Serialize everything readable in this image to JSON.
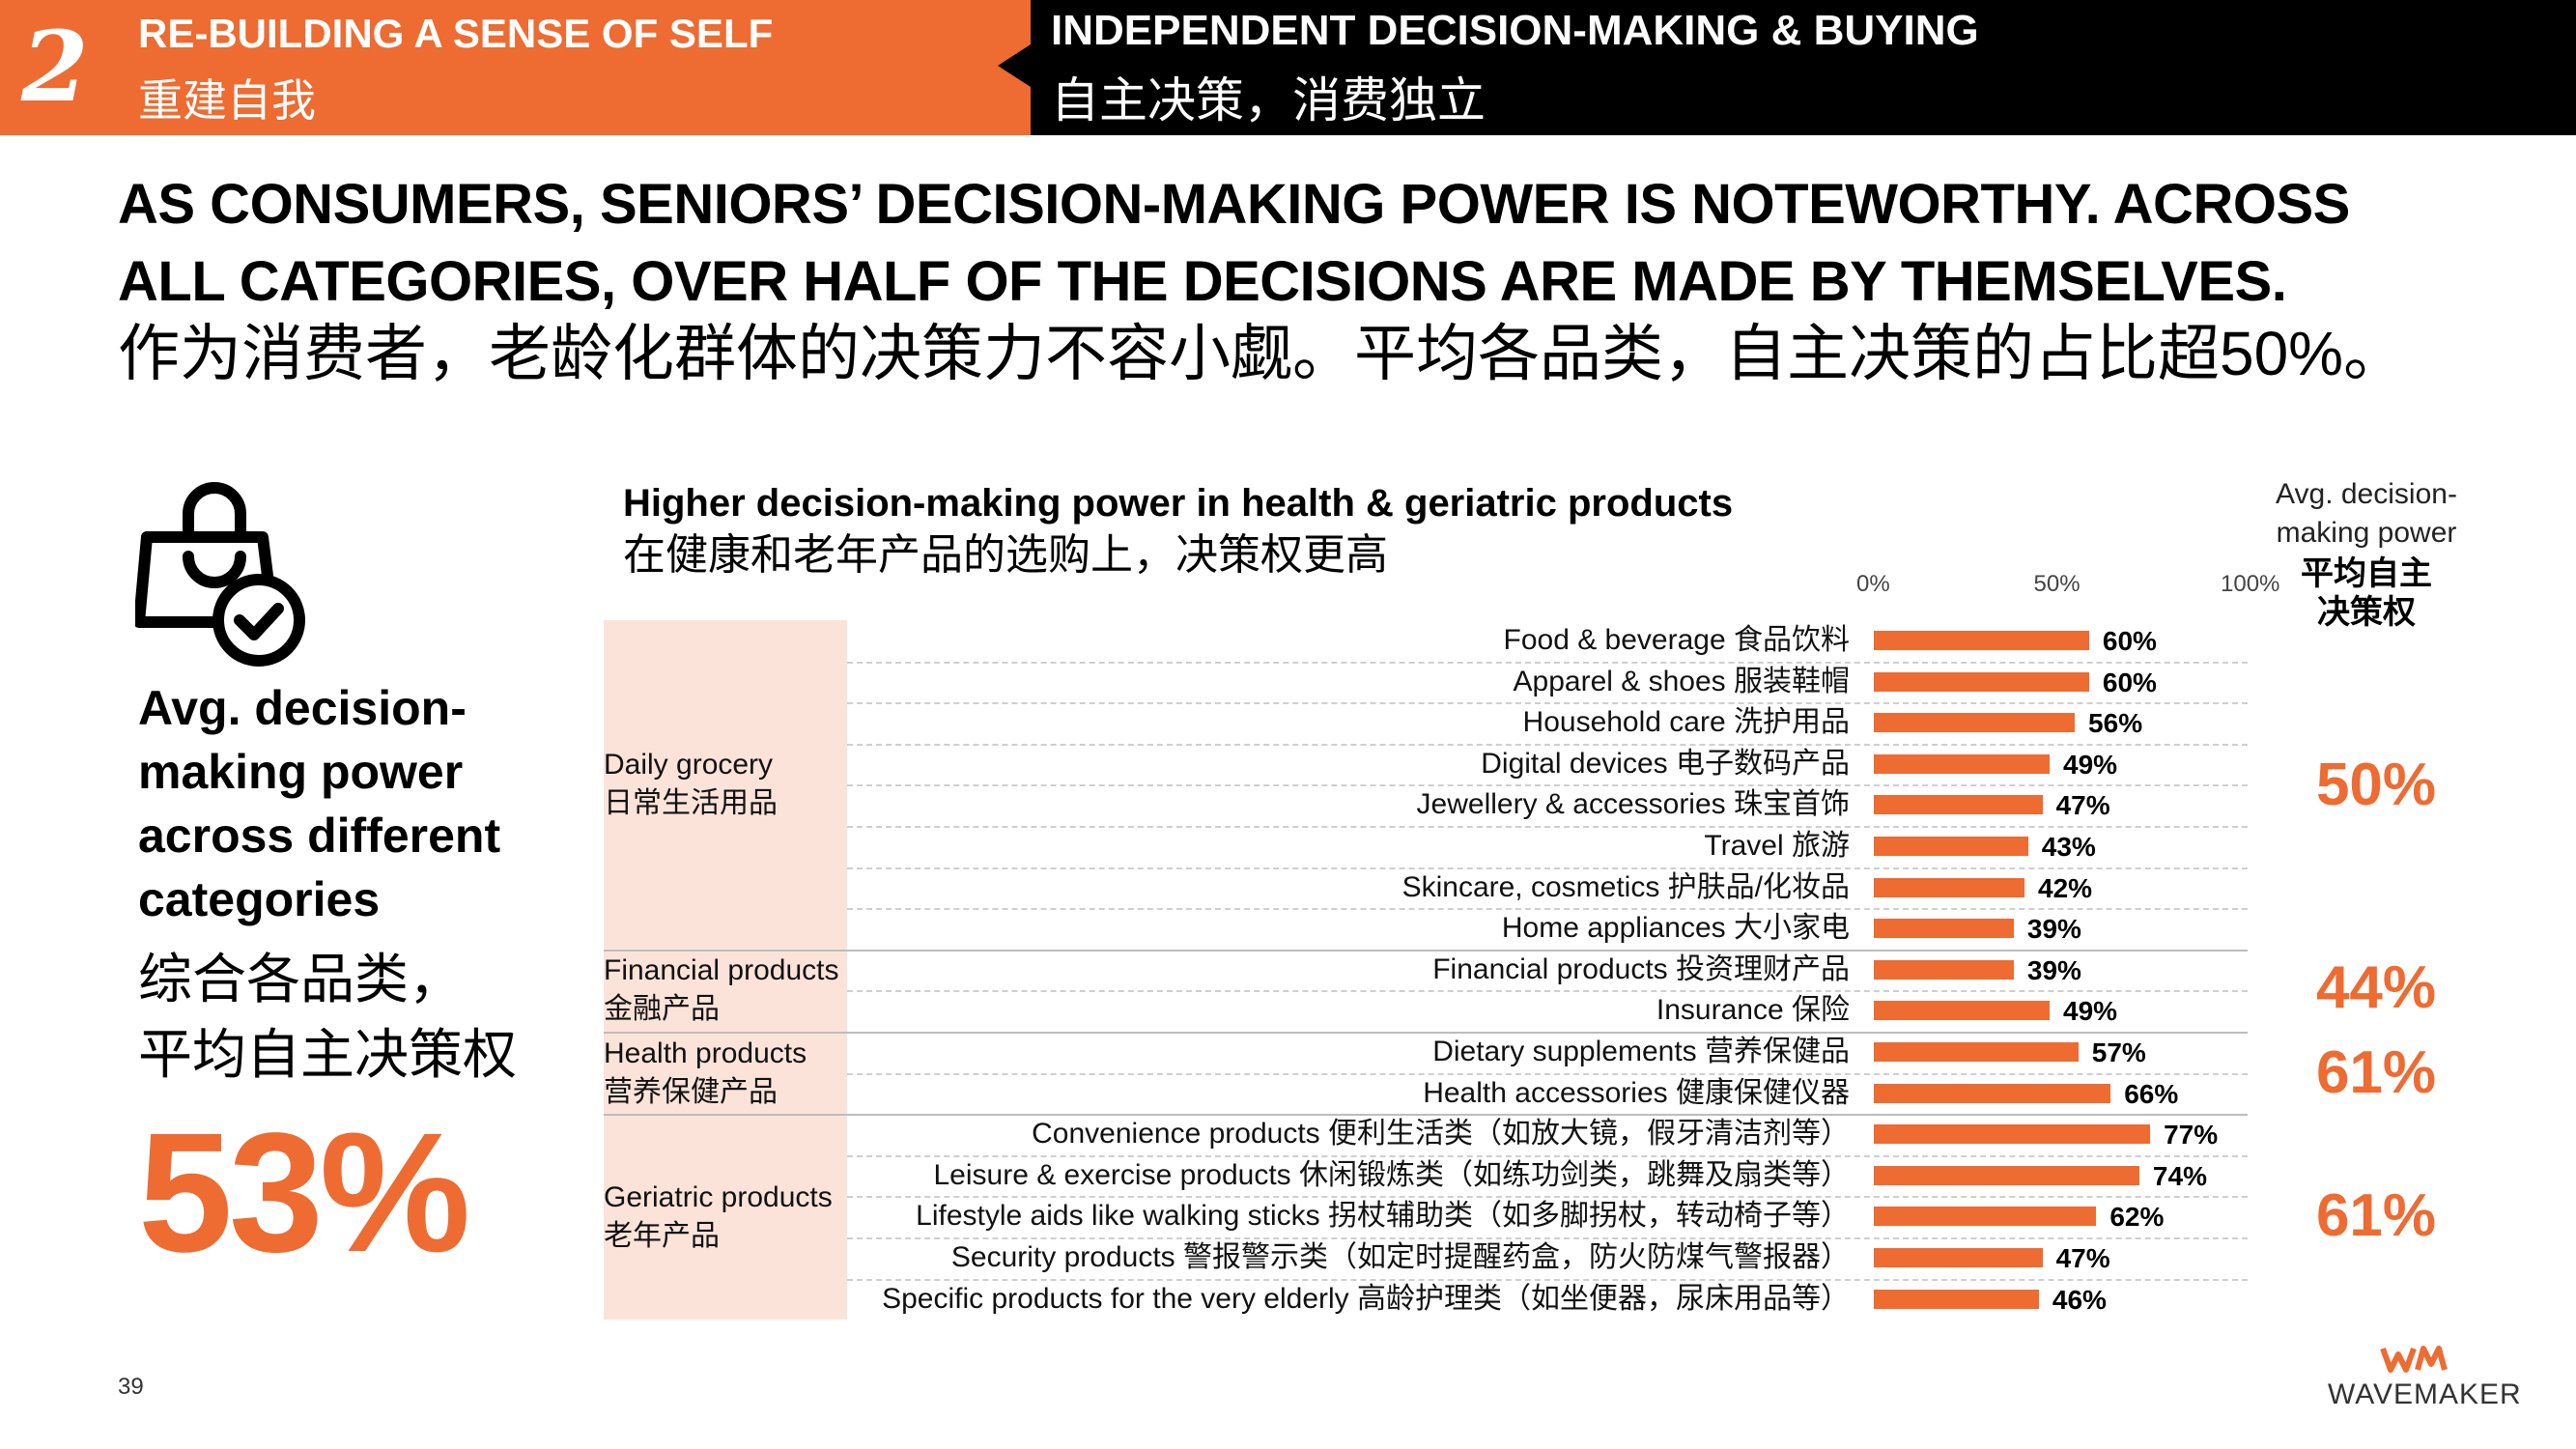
{
  "header": {
    "section_number": "2",
    "left_title_en": "RE-BUILDING A SENSE OF SELF",
    "left_title_zh": "重建自我",
    "right_title_en": "INDEPENDENT DECISION-MAKING & BUYING",
    "right_title_zh": "自主决策，消费独立"
  },
  "headline": {
    "line1_en": "AS CONSUMERS, SENIORS’ DECISION-MAKING POWER IS NOTEWORTHY. ACROSS",
    "line2_en": "ALL CATEGORIES, OVER HALF OF THE DECISIONS ARE MADE BY THEMSELVES.",
    "line_zh": "作为消费者，老龄化群体的决策力不容小觑。平均各品类，自主决策的占比超50%。"
  },
  "left_panel": {
    "icon": "shopping-bag-check-icon",
    "title_en": "Avg. decision-making power across different categories",
    "title_zh_1": "综合各品类，",
    "title_zh_2": "平均自主决策权",
    "value": "53%"
  },
  "avg_column": {
    "header_en_1": "Avg. decision-",
    "header_en_2": "making power",
    "header_zh_1": "平均自主",
    "header_zh_2": "决策权",
    "values": [
      "50%",
      "44%",
      "61%",
      "61%"
    ]
  },
  "colors": {
    "accent": "#EE6B32",
    "group_bg": "#FCE3DA",
    "dark": "#000000"
  },
  "chart_data": {
    "type": "bar",
    "orientation": "horizontal",
    "title": "Higher decision-making power in health & geriatric products",
    "subtitle": "在健康和老年产品的选购上，决策权更高",
    "xlim": [
      0,
      100
    ],
    "ticks": [
      "0%",
      "50%",
      "100%"
    ],
    "value_suffix": "%",
    "groups": [
      {
        "name_en": "Daily grocery",
        "name_zh": "日常生活用品",
        "avg": "50%",
        "items": [
          {
            "label": "Food & beverage 食品饮料",
            "value": 60
          },
          {
            "label": "Apparel & shoes 服装鞋帽",
            "value": 60
          },
          {
            "label": "Household care  洗护用品",
            "value": 56
          },
          {
            "label": "Digital devices 电子数码产品",
            "value": 49
          },
          {
            "label": "Jewellery & accessories 珠宝首饰",
            "value": 47
          },
          {
            "label": "Travel 旅游",
            "value": 43
          },
          {
            "label": "Skincare, cosmetics 护肤品/化妆品",
            "value": 42
          },
          {
            "label": "Home appliances 大小家电",
            "value": 39
          }
        ]
      },
      {
        "name_en": "Financial products",
        "name_zh": "金融产品",
        "avg": "44%",
        "items": [
          {
            "label": "Financial products 投资理财产品",
            "value": 39
          },
          {
            "label": "Insurance 保险",
            "value": 49
          }
        ]
      },
      {
        "name_en": "Health products",
        "name_zh": "营养保健产品",
        "avg": "61%",
        "items": [
          {
            "label": "Dietary supplements 营养保健品",
            "value": 57
          },
          {
            "label": "Health accessories 健康保健仪器",
            "value": 66
          }
        ]
      },
      {
        "name_en": "Geriatric products",
        "name_zh": "老年产品",
        "avg": "61%",
        "items": [
          {
            "label": "Convenience products  便利生活类（如放大镜，假牙清洁剂等）",
            "value": 77
          },
          {
            "label": "Leisure & exercise products 休闲锻炼类（如练功剑类，跳舞及扇类等）",
            "value": 74
          },
          {
            "label": "Lifestyle aids like walking sticks 拐杖辅助类（如多脚拐杖，转动椅子等）",
            "value": 62
          },
          {
            "label": "Security products 警报警示类（如定时提醒药盒，防火防煤气警报器）",
            "value": 47
          },
          {
            "label": "Specific products for the very elderly 高龄护理类（如坐便器，尿床用品等）",
            "value": 46
          }
        ]
      }
    ]
  },
  "footer": {
    "page_number": "39",
    "brand": "WAVEMAKER",
    "brand_mark": "WM"
  }
}
